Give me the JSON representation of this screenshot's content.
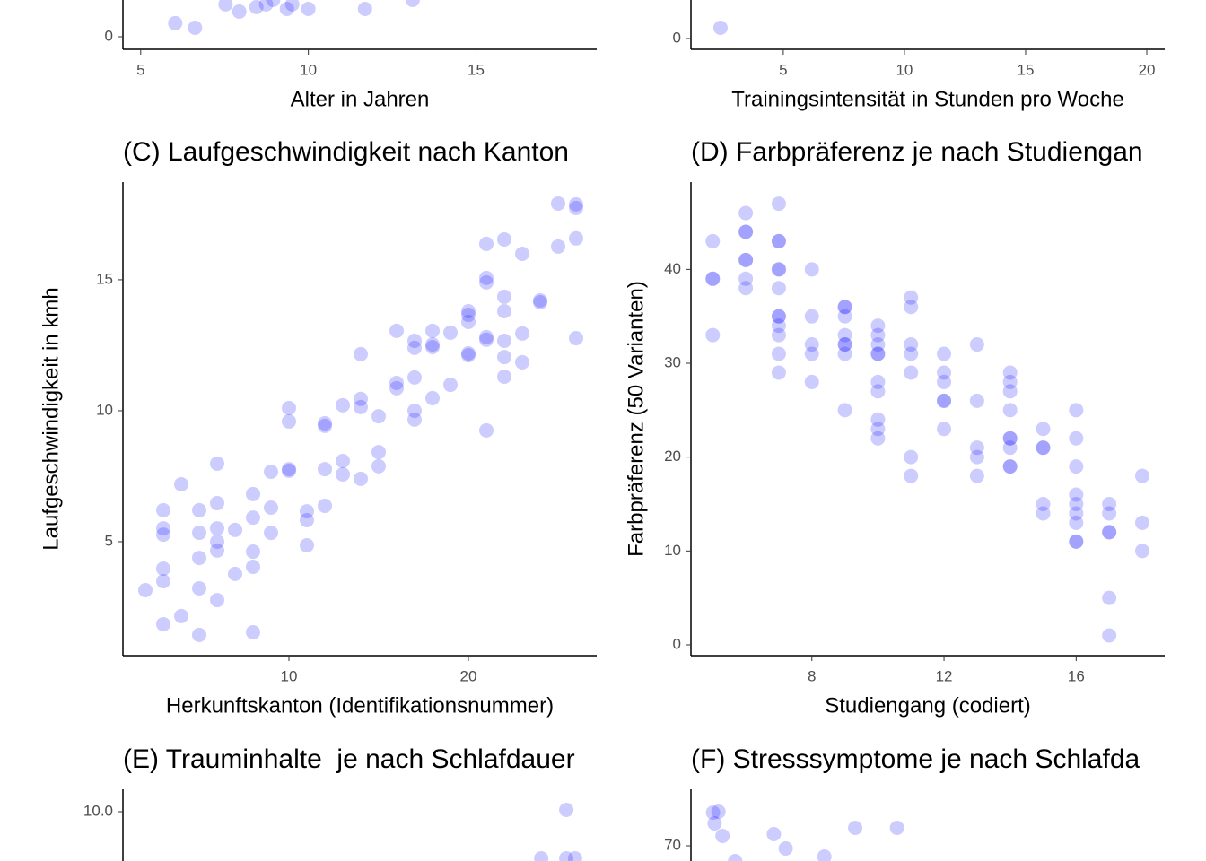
{
  "chart_data": [
    {
      "type": "scatter",
      "x_label": "Alter in Jahren",
      "color": "#0000ff",
      "x": [
        6.03,
        6.62,
        7.53,
        7.94,
        8.45,
        8.74,
        8.95,
        9.36,
        9.52,
        10.0,
        11.69,
        13.11
      ],
      "values": [
        1.61,
        1.07,
        3.86,
        3.0,
        3.54,
        3.86,
        4.39,
        3.32,
        3.86,
        3.32,
        3.32,
        4.39
      ],
      "xlim": [
        4.47,
        18.6
      ],
      "ylim": [
        -1.5,
        20
      ],
      "xticks": [
        5,
        10,
        15
      ],
      "yticks": [
        0
      ]
    },
    {
      "type": "scatter",
      "x_label": "Trainingsintensität in Stunden pro Woche",
      "color": "#0000ff",
      "x": [
        2.41
      ],
      "values": [
        1.3
      ],
      "xlim": [
        1.19,
        20.74
      ],
      "ylim": [
        -1.3,
        20
      ],
      "xticks": [
        5,
        10,
        15,
        20
      ],
      "yticks": [
        0
      ]
    },
    {
      "type": "scatter",
      "title": "(C) Laufgeschwindigkeit nach Kanton",
      "x_label": "Herkunftskanton (Identifikationsnummer)",
      "y_label": "Laufgeschwindigkeit in kmh",
      "color": "#0000ff",
      "x": [
        2,
        3,
        3,
        3,
        3,
        3,
        3,
        4,
        4,
        5,
        5,
        5,
        5,
        5,
        6,
        6,
        6,
        6,
        6,
        6,
        7,
        7,
        8,
        8,
        8,
        8,
        8,
        9,
        9,
        9,
        10,
        10,
        10,
        10,
        11,
        11,
        11,
        12,
        12,
        12,
        12,
        13,
        13,
        13,
        14,
        14,
        14,
        14,
        15,
        15,
        15,
        16,
        16,
        16,
        17,
        17,
        17,
        17,
        17,
        18,
        18,
        18,
        18,
        19,
        19,
        20,
        20,
        20,
        20,
        20,
        21,
        21,
        21,
        21,
        21,
        21,
        22,
        22,
        22,
        22,
        22,
        22,
        23,
        23,
        23,
        24,
        24,
        25,
        25,
        26,
        26,
        26,
        26
      ],
      "values": [
        3.15,
        6.2,
        5.51,
        5.27,
        3.97,
        3.49,
        1.85,
        7.19,
        2.16,
        6.2,
        5.34,
        4.38,
        3.22,
        1.44,
        7.98,
        6.47,
        5.51,
        5.0,
        4.66,
        2.77,
        5.45,
        3.77,
        6.82,
        5.92,
        4.62,
        4.04,
        1.54,
        7.67,
        6.3,
        5.34,
        10.1,
        9.59,
        7.77,
        7.71,
        6.16,
        5.82,
        4.86,
        9.52,
        9.42,
        7.77,
        6.37,
        10.21,
        8.08,
        7.57,
        12.16,
        10.45,
        10.14,
        7.4,
        9.79,
        8.42,
        7.88,
        13.05,
        11.06,
        10.86,
        12.4,
        12.67,
        11.27,
        10.0,
        9.66,
        13.05,
        12.53,
        12.43,
        10.48,
        12.98,
        10.99,
        13.8,
        13.66,
        13.39,
        12.19,
        12.12,
        16.37,
        15.07,
        14.9,
        12.81,
        12.71,
        9.25,
        16.54,
        14.35,
        13.8,
        12.67,
        12.05,
        11.3,
        15.99,
        12.95,
        11.85,
        14.21,
        14.14,
        17.91,
        16.27,
        17.88,
        17.74,
        16.58,
        12.77
      ],
      "xlim": [
        0.75,
        27.15
      ],
      "ylim": [
        0.65,
        18.73
      ],
      "xticks": [
        10,
        20
      ],
      "yticks": [
        5,
        10,
        15
      ]
    },
    {
      "type": "scatter",
      "title": "(D) Farbpräferenz je nach Studiengan",
      "x_label": "Studiengang (codiert)",
      "y_label": "Farbpräferenz (50 Varianten)",
      "color": "#0000ff",
      "x": [
        5,
        5,
        5,
        5,
        6,
        6,
        6,
        6,
        6,
        6,
        6,
        7,
        7,
        7,
        7,
        7,
        7,
        7,
        7,
        7,
        7,
        7,
        7,
        8,
        8,
        8,
        8,
        8,
        9,
        9,
        9,
        9,
        9,
        9,
        9,
        9,
        10,
        10,
        10,
        10,
        10,
        10,
        10,
        10,
        10,
        10,
        11,
        11,
        11,
        11,
        11,
        11,
        11,
        12,
        12,
        12,
        12,
        12,
        12,
        13,
        13,
        13,
        13,
        13,
        14,
        14,
        14,
        14,
        14,
        14,
        14,
        14,
        14,
        15,
        15,
        15,
        15,
        15,
        16,
        16,
        16,
        16,
        16,
        16,
        16,
        16,
        16,
        17,
        17,
        17,
        17,
        17,
        17,
        18,
        18,
        18
      ],
      "values": [
        43,
        39,
        39,
        33,
        46,
        44,
        44,
        41,
        41,
        39,
        38,
        47,
        43,
        43,
        40,
        40,
        38,
        35,
        35,
        34,
        33,
        31,
        29,
        40,
        35,
        32,
        31,
        28,
        36,
        36,
        35,
        33,
        32,
        32,
        31,
        25,
        34,
        33,
        32,
        31,
        31,
        28,
        27,
        24,
        23,
        22,
        37,
        36,
        32,
        31,
        29,
        20,
        18,
        31,
        29,
        28,
        26,
        26,
        23,
        32,
        26,
        21,
        20,
        18,
        29,
        28,
        27,
        25,
        22,
        22,
        21,
        19,
        19,
        23,
        21,
        21,
        15,
        14,
        25,
        22,
        19,
        16,
        15,
        14,
        13,
        11,
        11,
        15,
        14,
        12,
        12,
        5,
        1,
        18,
        13,
        10
      ],
      "xlim": [
        4.34,
        18.68
      ],
      "ylim": [
        -1.15,
        49.3
      ],
      "xticks": [
        8,
        12,
        16
      ],
      "yticks": [
        0,
        10,
        20,
        30,
        40
      ]
    },
    {
      "type": "scatter",
      "title": "(E) Trauminhalte  je nach Schlafdauer",
      "color": "#0000ff",
      "x": [
        9.55,
        9.18,
        9.55,
        9.68
      ],
      "values": [
        10.04,
        8.96,
        8.96,
        8.96
      ],
      "xlim": [
        3,
        10
      ],
      "ylim": [
        1.5,
        10.5
      ],
      "yticks": [
        {
          "value": 10,
          "label": "10.0"
        }
      ]
    },
    {
      "type": "scatter",
      "title": "(F) Stresssymptome je nach Schlafda",
      "color": "#0000ff",
      "x": [
        4.28,
        4.35,
        4.3,
        4.4,
        5.05,
        5.2,
        4.56,
        5.69,
        6.08,
        6.61
      ],
      "values": [
        75.29,
        75.43,
        73.57,
        71.57,
        71.86,
        69.57,
        67.57,
        68.29,
        72.86,
        72.86
      ],
      "xlim": [
        4,
        10
      ],
      "ylim": [
        20,
        79
      ],
      "yticks": [
        70
      ]
    }
  ]
}
